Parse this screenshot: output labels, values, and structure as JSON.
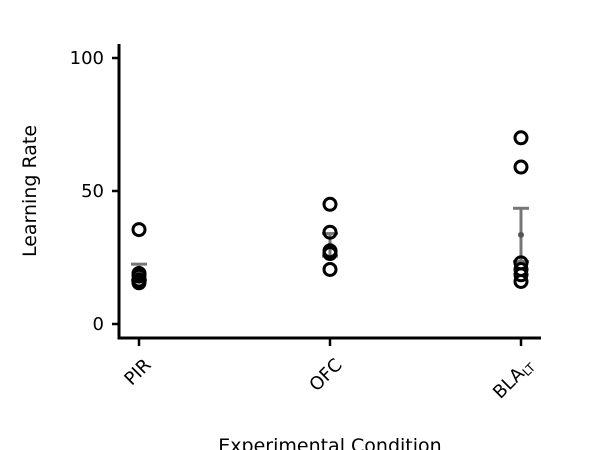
{
  "chart_data": {
    "type": "scatter",
    "xlabel": "Experimental Condition",
    "ylabel": "Learning Rate",
    "ylim": [
      -5,
      106
    ],
    "yticks": [
      0,
      50,
      100
    ],
    "categories": [
      {
        "label": "PIR",
        "sub": ""
      },
      {
        "label": "OFC",
        "sub": ""
      },
      {
        "label": "BLA",
        "sub": "LT"
      }
    ],
    "points": [
      [
        35.5,
        19.0,
        18.0,
        16.5,
        15.5
      ],
      [
        45.0,
        34.5,
        27.5,
        26.5,
        20.5
      ],
      [
        70.0,
        59.0,
        23.0,
        20.5,
        18.5,
        16.0
      ]
    ],
    "mean": [
      19.5,
      29.5,
      33.5
    ],
    "error_upper": [
      22.5,
      34.0,
      43.5
    ],
    "error_lower": [
      16.5,
      25.5,
      23.5
    ],
    "marker": "open-circle",
    "colors": {
      "points": "#000000",
      "errorbar": "#777777",
      "axes": "#000000"
    },
    "grid": false
  }
}
